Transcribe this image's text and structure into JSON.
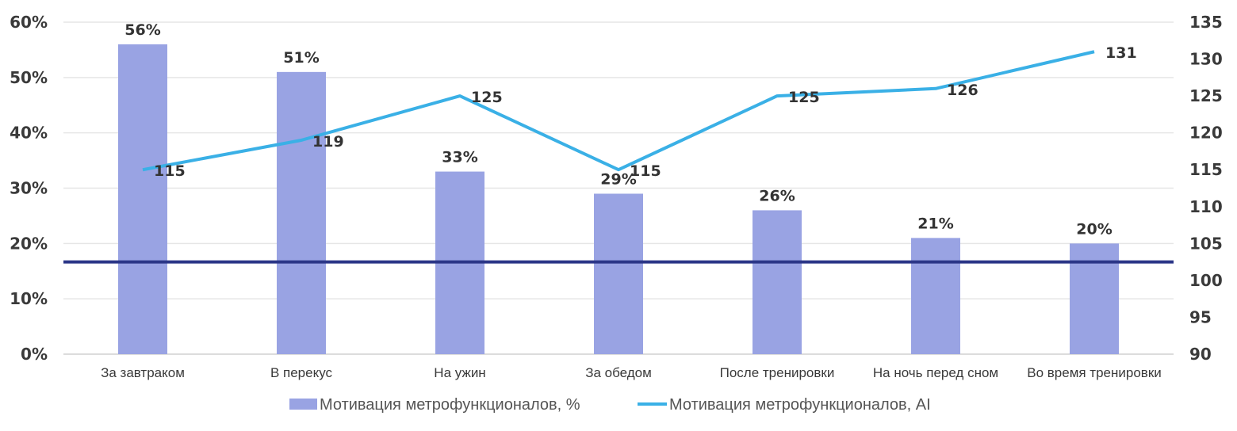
{
  "chart_data": {
    "type": "bar",
    "categories": [
      "За завтраком",
      "В перекус",
      "На ужин",
      "За обедом",
      "После тренировки",
      "На ночь перед сном",
      "Во время тренировки"
    ],
    "series": [
      {
        "name": "Мотивация метрофункционалов, %",
        "type": "bar",
        "axis": "left",
        "values": [
          56,
          51,
          33,
          29,
          26,
          21,
          20
        ],
        "labels": [
          "56%",
          "51%",
          "33%",
          "29%",
          "26%",
          "21%",
          "20%"
        ],
        "color": "#99a3e3"
      },
      {
        "name": "Мотивация метрофункционалов, AI",
        "type": "line",
        "axis": "right",
        "values": [
          115,
          119,
          125,
          115,
          125,
          126,
          131
        ],
        "labels": [
          "115",
          "119",
          "125",
          "115",
          "125",
          "126",
          "131"
        ],
        "color": "#3ab0e6"
      }
    ],
    "reference_line": {
      "axis": "right",
      "value": 102.5,
      "color": "#2b3687"
    },
    "y_left": {
      "ticks": [
        "0%",
        "10%",
        "20%",
        "30%",
        "40%",
        "50%",
        "60%"
      ],
      "ylim": [
        0,
        60
      ]
    },
    "y_right": {
      "ticks": [
        "90",
        "95",
        "100",
        "105",
        "110",
        "115",
        "120",
        "125",
        "130",
        "135"
      ],
      "ylim": [
        90,
        135
      ]
    },
    "grid": true,
    "legend": "bottom-center",
    "title": ""
  }
}
